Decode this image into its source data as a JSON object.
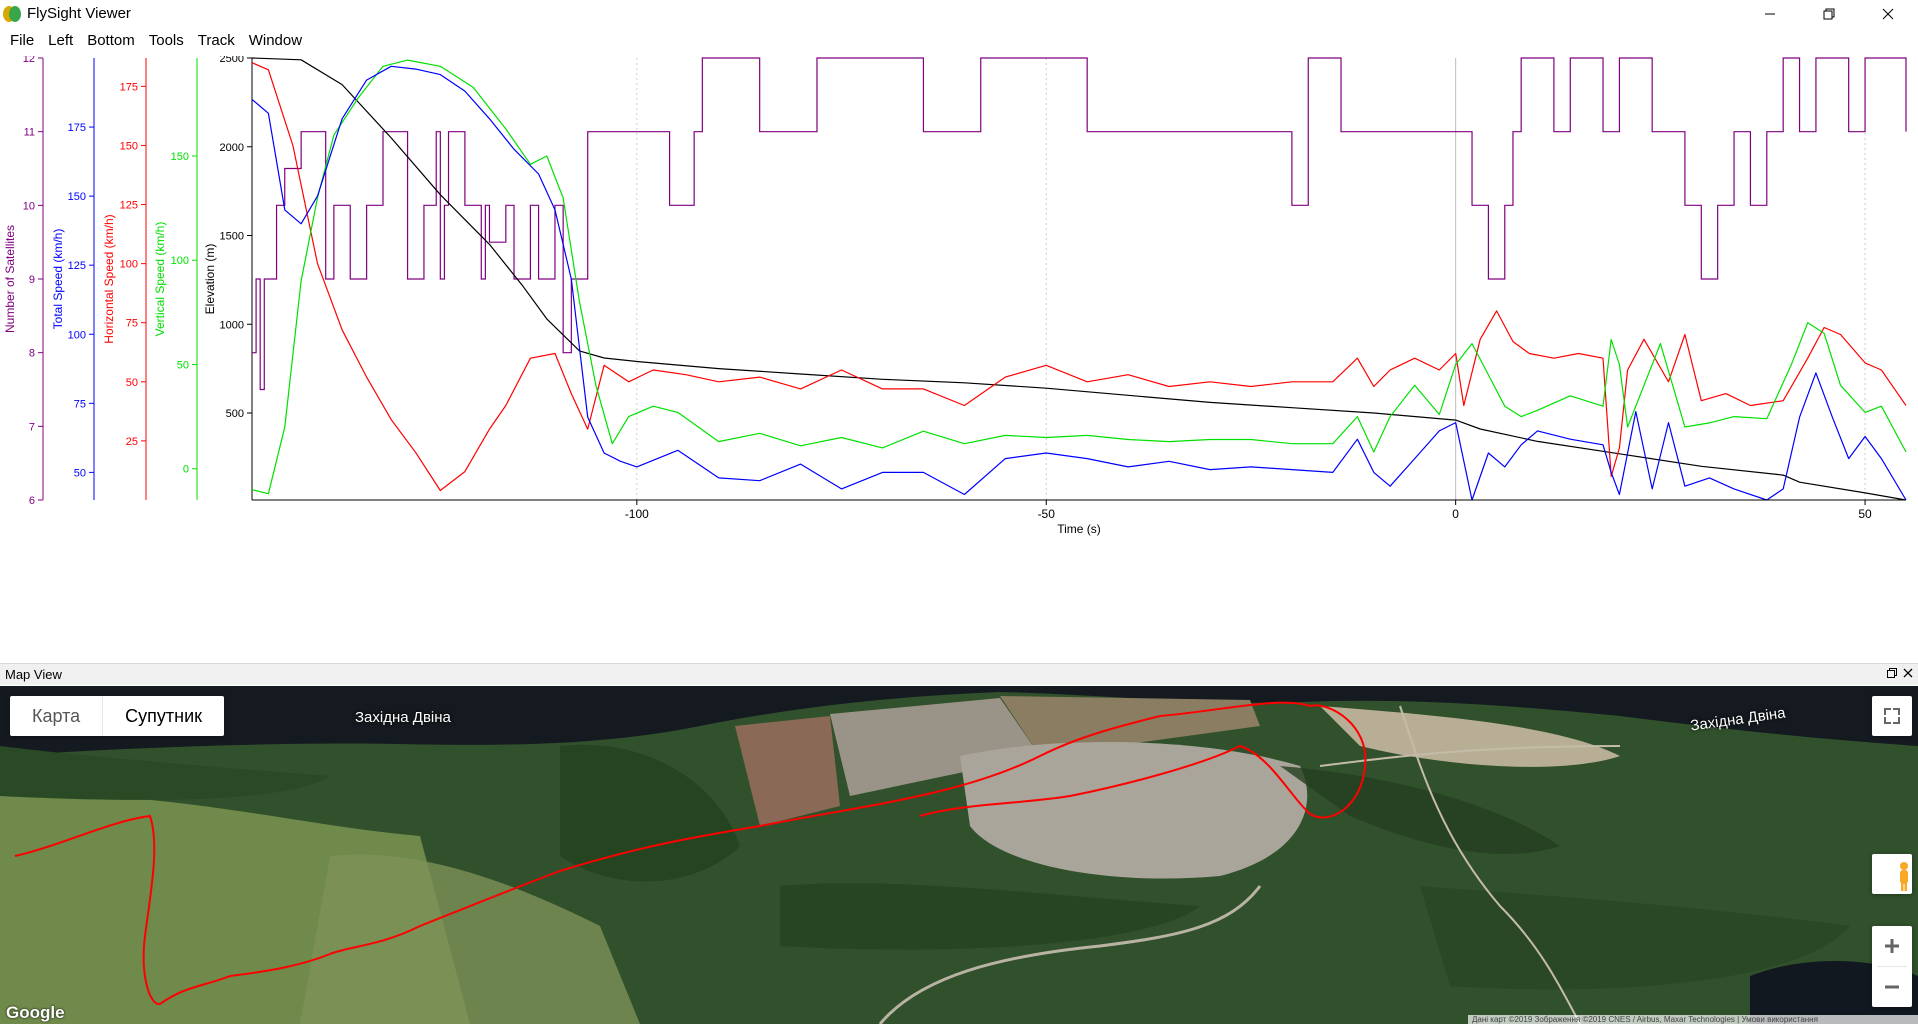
{
  "window": {
    "title": "FlySight Viewer"
  },
  "menu": [
    "File",
    "Left",
    "Bottom",
    "Tools",
    "Track",
    "Window"
  ],
  "chart_data": {
    "type": "line",
    "xlabel": "Time (s)",
    "xlim": [
      -147,
      55
    ],
    "xticks": [
      -100,
      -50,
      0,
      50
    ],
    "axes": [
      {
        "id": "sat",
        "label": "Number of Satellites",
        "color": "#800080",
        "range": [
          6,
          12
        ],
        "ticks": [
          6,
          7,
          8,
          9,
          10,
          11,
          12
        ]
      },
      {
        "id": "total",
        "label": "Total Speed (km/h)",
        "color": "#0000ff",
        "range": [
          40,
          200
        ],
        "ticks": [
          50,
          75,
          100,
          125,
          150,
          175
        ]
      },
      {
        "id": "horiz",
        "label": "Horizontal Speed (km/h)",
        "color": "#ff0000",
        "range": [
          0,
          187
        ],
        "ticks": [
          25,
          50,
          75,
          100,
          125,
          150,
          175
        ]
      },
      {
        "id": "vert",
        "label": "Vertical Speed (km/h)",
        "color": "#00e000",
        "range": [
          -15,
          197
        ],
        "ticks": [
          0,
          50,
          100,
          150
        ]
      },
      {
        "id": "elev",
        "label": "Elevation (m)",
        "color": "#000000",
        "range": [
          10,
          2500
        ],
        "ticks": [
          500,
          1000,
          1500,
          2000,
          2500
        ]
      }
    ],
    "series": [
      {
        "name": "Elevation (m)",
        "axis": "elev",
        "color": "#000000",
        "x": [
          -147,
          -141,
          -136,
          -130,
          -124,
          -118,
          -114,
          -111,
          -107,
          -104,
          -100,
          -90,
          -80,
          -70,
          -60,
          -50,
          -40,
          -30,
          -20,
          -10,
          0,
          3,
          10,
          20,
          30,
          40,
          42,
          50,
          55
        ],
        "y": [
          2500,
          2490,
          2350,
          2050,
          1730,
          1450,
          1220,
          1030,
          850,
          810,
          790,
          750,
          720,
          690,
          670,
          640,
          600,
          560,
          530,
          500,
          460,
          410,
          340,
          270,
          200,
          150,
          110,
          50,
          10
        ]
      },
      {
        "name": "Horizontal Speed (km/h)",
        "axis": "horiz",
        "color": "#ff0000",
        "x": [
          -147,
          -145,
          -142,
          -139,
          -136,
          -133,
          -130,
          -127,
          -124,
          -121,
          -118,
          -116,
          -113,
          -110,
          -108,
          -106,
          -104,
          -101,
          -98,
          -94,
          -90,
          -85,
          -80,
          -75,
          -70,
          -65,
          -60,
          -55,
          -50,
          -45,
          -40,
          -35,
          -30,
          -25,
          -20,
          -15,
          -12,
          -10,
          -8,
          -5,
          -2,
          0,
          1,
          3,
          5,
          7,
          9,
          12,
          15,
          18,
          19,
          20,
          21,
          23,
          26,
          28,
          30,
          33,
          36,
          40,
          43,
          45,
          47,
          50,
          52,
          55
        ],
        "y": [
          185,
          182,
          150,
          100,
          72,
          52,
          34,
          20,
          4,
          12,
          30,
          40,
          60,
          62,
          45,
          30,
          57,
          50,
          55,
          53,
          50,
          52,
          47,
          55,
          47,
          47,
          40,
          52,
          57,
          50,
          53,
          48,
          50,
          48,
          50,
          50,
          60,
          48,
          55,
          60,
          55,
          62,
          40,
          68,
          80,
          67,
          62,
          60,
          62,
          60,
          10,
          22,
          55,
          68,
          50,
          70,
          42,
          45,
          40,
          42,
          60,
          73,
          70,
          58,
          55,
          40
        ]
      },
      {
        "name": "Vertical Speed (km/h)",
        "axis": "vert",
        "color": "#00e000",
        "x": [
          -147,
          -145,
          -143,
          -141,
          -139,
          -137,
          -134,
          -131,
          -128,
          -124,
          -120,
          -116,
          -113,
          -111,
          -109,
          -107,
          -105,
          -103,
          -101,
          -98,
          -95,
          -90,
          -85,
          -80,
          -75,
          -70,
          -65,
          -60,
          -55,
          -50,
          -45,
          -40,
          -35,
          -30,
          -25,
          -20,
          -15,
          -12,
          -10,
          -8,
          -5,
          -2,
          0,
          2,
          4,
          6,
          8,
          10,
          14,
          18,
          19,
          20,
          21,
          23,
          25,
          28,
          31,
          34,
          38,
          41,
          43,
          45,
          47,
          50,
          52,
          55
        ],
        "y": [
          -10,
          -12,
          20,
          90,
          130,
          160,
          178,
          193,
          196,
          193,
          183,
          163,
          146,
          150,
          130,
          80,
          40,
          12,
          25,
          30,
          27,
          13,
          17,
          11,
          15,
          10,
          18,
          12,
          16,
          15,
          16,
          14,
          13,
          14,
          14,
          12,
          12,
          25,
          8,
          25,
          40,
          26,
          50,
          60,
          45,
          30,
          25,
          28,
          35,
          30,
          62,
          50,
          20,
          40,
          60,
          20,
          22,
          25,
          24,
          50,
          70,
          65,
          40,
          27,
          30,
          8
        ]
      },
      {
        "name": "Total Speed (km/h)",
        "axis": "total",
        "color": "#0000ff",
        "x": [
          -147,
          -145,
          -143,
          -141,
          -139,
          -136,
          -133,
          -130,
          -127,
          -124,
          -121,
          -118,
          -115,
          -112,
          -110,
          -108,
          -106,
          -104,
          -102,
          -100,
          -95,
          -90,
          -85,
          -80,
          -75,
          -70,
          -65,
          -60,
          -55,
          -50,
          -45,
          -40,
          -35,
          -30,
          -25,
          -20,
          -15,
          -12,
          -10,
          -8,
          -5,
          -2,
          0,
          2,
          4,
          6,
          8,
          10,
          14,
          18,
          19,
          20,
          22,
          24,
          26,
          28,
          31,
          34,
          38,
          40,
          42,
          44,
          46,
          48,
          50,
          52,
          55
        ],
        "y": [
          185,
          180,
          145,
          140,
          150,
          178,
          192,
          197,
          196,
          194,
          188,
          178,
          167,
          158,
          145,
          120,
          70,
          57,
          54,
          52,
          58,
          48,
          47,
          53,
          44,
          50,
          50,
          42,
          55,
          57,
          55,
          52,
          54,
          51,
          52,
          51,
          50,
          62,
          50,
          45,
          55,
          65,
          68,
          40,
          57,
          52,
          60,
          65,
          62,
          60,
          50,
          42,
          72,
          44,
          68,
          45,
          48,
          44,
          40,
          44,
          70,
          86,
          70,
          55,
          63,
          55,
          40
        ]
      }
    ],
    "satellites": {
      "name": "Number of Satellites",
      "axis": "sat",
      "color": "#800080",
      "x": [
        -147,
        -146.5,
        -146,
        -145.5,
        -144,
        -143,
        -141,
        -139,
        -138,
        -137,
        -135,
        -133,
        -131,
        -130,
        -128,
        -126,
        -124.5,
        -124,
        -123.5,
        -123,
        -121,
        -119,
        -118.5,
        -118,
        -116,
        -115,
        -113,
        -112,
        -110,
        -109,
        -108,
        -107,
        -106,
        -105,
        -104,
        -100,
        -96,
        -94,
        -93,
        -92,
        -90,
        -85,
        -82,
        -78,
        -70,
        -65,
        -60,
        -58,
        -50,
        -45,
        -40,
        -30,
        -22,
        -20,
        -18,
        -16,
        -14,
        -10,
        0,
        2,
        4,
        6,
        7,
        8,
        10,
        12,
        14,
        16,
        18,
        20,
        22,
        24,
        26,
        28,
        30,
        32,
        34,
        36,
        38,
        40,
        42,
        44,
        46,
        48,
        50,
        52,
        55
      ],
      "y": [
        8,
        9,
        7.5,
        9,
        10,
        10.5,
        11,
        11,
        9,
        10,
        9,
        10,
        11,
        11,
        9,
        10,
        11,
        9,
        10,
        11,
        10,
        9,
        10,
        9.5,
        10,
        9,
        10,
        9,
        10,
        8,
        9,
        9,
        11,
        11,
        11,
        11,
        10,
        10,
        11,
        12,
        12,
        11,
        11,
        12,
        12,
        11,
        11,
        12,
        12,
        11,
        11,
        11,
        11,
        10,
        12,
        12,
        11,
        11,
        11,
        10,
        9,
        10,
        11,
        12,
        12,
        11,
        12,
        12,
        11,
        12,
        12,
        11,
        11,
        10,
        9,
        10,
        11,
        10,
        11,
        12,
        11,
        12,
        12,
        11,
        12,
        12,
        11
      ]
    }
  },
  "mapview": {
    "title": "Map View",
    "map_type_buttons": [
      "Карта",
      "Супутник"
    ],
    "active_map_type": "Супутник",
    "river_labels": [
      "Західна Двіна",
      "Західна Двіна"
    ],
    "logo": "Google",
    "attribution": "Дані карт ©2019 Зображення ©2019 CNES / Airbus, Maxar Technologies | Умови використання"
  }
}
